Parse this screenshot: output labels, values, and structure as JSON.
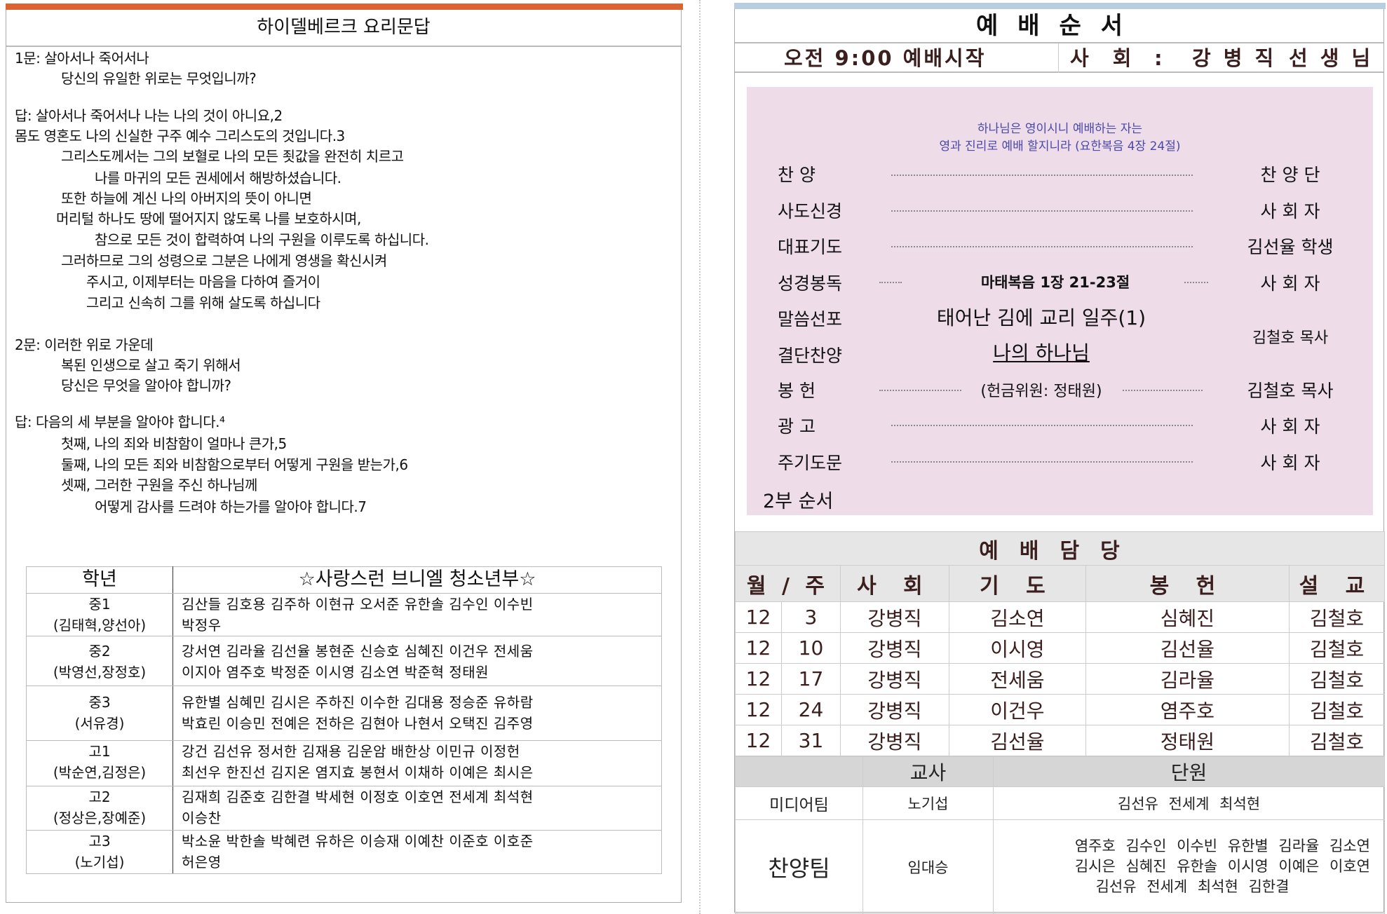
{
  "catechism": {
    "title": "하이델베르크 요리문답",
    "lines": [
      "1문: 살아서나 죽어서나",
      "당신의 유일한 위로는 무엇입니까?",
      "답: 살아서나 죽어서나 나는 나의 것이 아니요,2",
      "몸도 영혼도 나의 신실한 구주 예수 그리스도의 것입니다.3",
      "그리스도께서는 그의 보혈로 나의 모든 죗값을 완전히 치르고",
      "나를 마귀의 모든 권세에서 해방하셨습니다.",
      "또한 하늘에 계신 나의 아버지의 뜻이 아니면",
      "머리털 하나도 땅에 떨어지지 않도록 나를 보호하시며,",
      "참으로 모든 것이 합력하여 나의 구원을 이루도록 하십니다.",
      "그러하므로 그의 성령으로 그분은 나에게 영생을 확신시켜",
      "주시고, 이제부터는 마음을 다하여 즐거이",
      "그리고 신속히 그를 위해 살도록 하십니다",
      "2문: 이러한 위로 가운데",
      "복된 인생으로 살고 죽기 위해서",
      "당신은 무엇을 알아야 합니까?",
      "답: 다음의 세 부분을 알아야 합니다.⁴",
      "첫째, 나의 죄와 비참함이 얼마나 큰가,5",
      "둘째, 나의 모든 죄와 비참함으로부터 어떻게 구원을 받는가,6",
      "셋째, 그러한 구원을 주신 하나님께",
      "어떻게 감사를 드려야 하는가를 알아야 합니다.7"
    ]
  },
  "youth": {
    "headers": [
      "학년",
      "☆사랑스런 브니엘 청소년부☆"
    ],
    "rows": [
      {
        "grade": "중1",
        "teachers": "(김태혁,양선아)",
        "members": [
          "김산들 김호용 김주하 이현규 오서준 유한솔 김수인 이수빈",
          "박정우"
        ]
      },
      {
        "grade": "중2",
        "teachers": "(박영선,장정호)",
        "members": [
          "강서연 김라율 김선율 봉현준 신승호 심혜진 이건우 전세움",
          "이지아 염주호 박정준 이시영 김소연 박준혁 정태원"
        ]
      },
      {
        "grade": "중3",
        "teachers": "(서유경)",
        "members": [
          "유한별 심혜민 김시은 주하진 이수한 김대용 정승준 유하람",
          "박효린 이승민 전예은 전하은 김현아 나현서 오택진 김주영"
        ]
      },
      {
        "grade": "고1",
        "teachers": "(박순연,김정은)",
        "members": [
          "강건 김선유 정서한 김재용 김운암 배한상 이민규 이정헌",
          "최선우 한진선 김지온 염지효 봉현서 이채하 이예은 최시은"
        ]
      },
      {
        "grade": "고2",
        "teachers": "(정상은,장예준)",
        "members": [
          "김재희 김준호 김한결 박세현 이정호 이호연 전세계 최석현",
          "이승찬"
        ]
      },
      {
        "grade": "고3",
        "teachers": "(노기섭)",
        "members": [
          "박소윤 박한솔 박혜련 유하은 이승재 이예찬 이준호 이호준",
          "허은영"
        ]
      }
    ]
  },
  "worship": {
    "title": "예배순서",
    "start": "오전 9:00 예배시작",
    "leader_label": "사 회",
    "leader_colon": ":",
    "leader": "강 병 직",
    "leader_title": "선 생 님",
    "verse": [
      "하나님은 영이시니 예배하는 자는",
      "영과 진리로 예배 할지니라 (요한복음 4장 24절)"
    ],
    "order": [
      {
        "label": "찬   양",
        "person": "찬 양 단"
      },
      {
        "label": "사도신경",
        "person": "사 회 자"
      },
      {
        "label": "대표기도",
        "person": "김선율 학생"
      },
      {
        "label": "성경봉독",
        "detail": "마태복음 1장 21-23절",
        "person": "사 회 자"
      },
      {
        "label": "말씀선포",
        "detail": "태어난 김에 교리 일주(1)"
      },
      {
        "label": "결단찬양",
        "detail": "나의 하나님"
      },
      {
        "label": "봉   헌",
        "detail": "(헌금위원: 정태원)",
        "person": "김철호 목사"
      },
      {
        "label": "광   고",
        "person": "사 회 자"
      },
      {
        "label": "주기도문",
        "person": "사 회 자"
      },
      {
        "label": "2부 순서"
      }
    ],
    "sermon_person": "김철호 목사"
  },
  "duty": {
    "title": "예배담당",
    "headers": [
      "월 / 주",
      "사 회",
      "기 도",
      "봉 헌",
      "설 교"
    ],
    "rows": [
      [
        "12",
        "3",
        "강병직",
        "김소연",
        "심혜진",
        "김철호"
      ],
      [
        "12",
        "10",
        "강병직",
        "이시영",
        "김선율",
        "김철호"
      ],
      [
        "12",
        "17",
        "강병직",
        "전세움",
        "김라율",
        "김철호"
      ],
      [
        "12",
        "24",
        "강병직",
        "이건우",
        "염주호",
        "김철호"
      ],
      [
        "12",
        "31",
        "강병직",
        "김선율",
        "정태원",
        "김철호"
      ]
    ]
  },
  "teams": {
    "headers": [
      "",
      "교사",
      "단원"
    ],
    "rows": [
      {
        "name": "미디어팀",
        "teacher": "노기섭",
        "members": [
          "김선유 전세계 최석현"
        ]
      },
      {
        "name": "찬양팀",
        "teacher": "임대승",
        "members": [
          "염주호 김수인 이수빈 유한별 김라율 김소연",
          "김시은 심혜진 유한솔 이시영 이예은 이호연",
          "김선유 전세계 최석현 김한결"
        ]
      }
    ]
  },
  "colors": {
    "left_accent": "#dd6430",
    "right_accent": "#b8cde0",
    "order_background": "#eedce9",
    "verse_text": "#4a48a8",
    "duty_text": "#3b1e1e"
  }
}
